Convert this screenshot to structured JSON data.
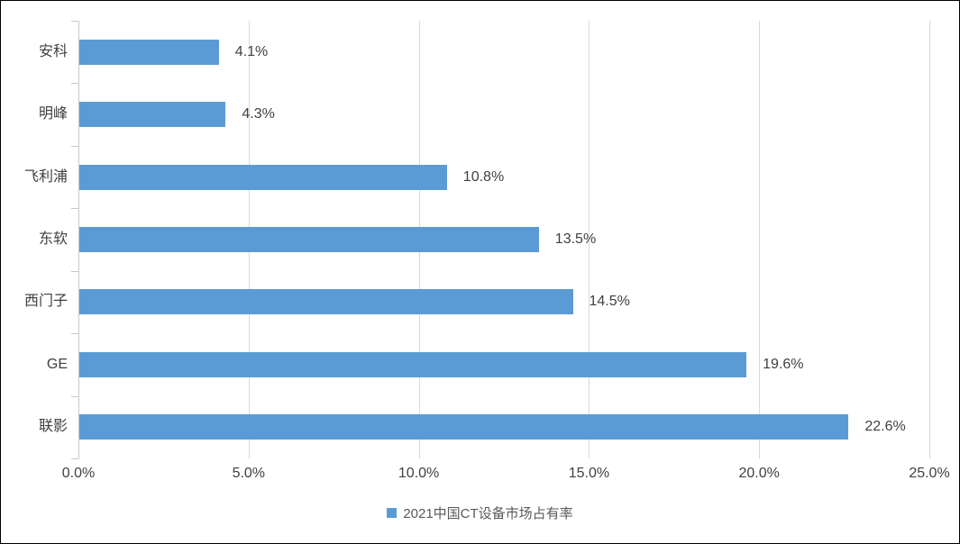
{
  "chart_data": {
    "type": "bar",
    "orientation": "horizontal",
    "title": "",
    "categories": [
      "安科",
      "明峰",
      "飞利浦",
      "东软",
      "西门子",
      "GE",
      "联影"
    ],
    "values": [
      4.1,
      4.3,
      10.8,
      13.5,
      14.5,
      19.6,
      22.6
    ],
    "value_labels": [
      "4.1%",
      "4.3%",
      "10.8%",
      "13.5%",
      "14.5%",
      "19.6%",
      "22.6%"
    ],
    "xlim": [
      0,
      25
    ],
    "x_tick_labels": [
      "0.0%",
      "5.0%",
      "10.0%",
      "15.0%",
      "20.0%",
      "25.0%"
    ],
    "grid": "vertical",
    "legend_position": "bottom-center",
    "legend_label": "2021中国CT设备市场占有率",
    "colors": {
      "bar": "#5b9bd5",
      "gridline": "#d9d9d9",
      "axis_line": "#c9c9c9",
      "label_text": "#404040",
      "legend_text": "#595959",
      "border": "#000000"
    }
  }
}
